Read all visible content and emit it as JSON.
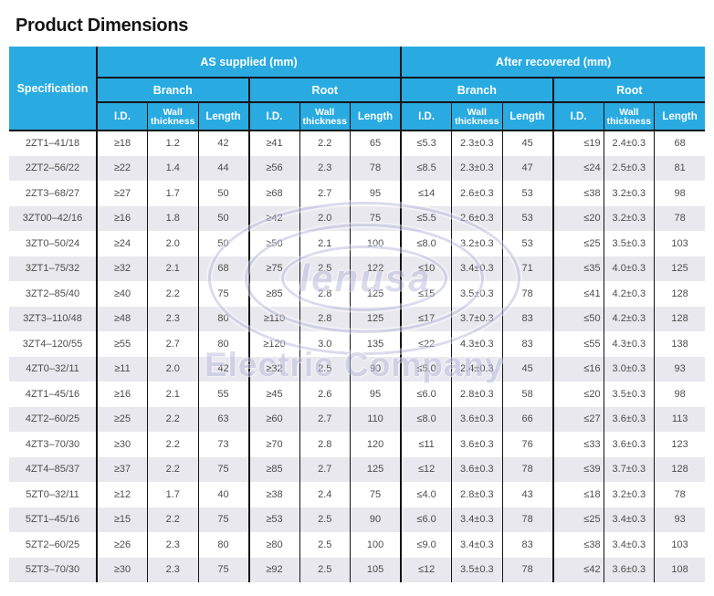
{
  "page_title": "Product Dimensions",
  "colors": {
    "header_blue": "#29abe2",
    "line": "#141414",
    "stripe": "#e8e8ee",
    "cell_text": "#4d4d4d",
    "watermark": "#b9b9de"
  },
  "watermark": {
    "name": "lenusa",
    "subtitle": "Electric Company"
  },
  "table": {
    "spec_header": "Specification",
    "groups": [
      {
        "label": "AS supplied (mm)",
        "sub": [
          "Branch",
          "Root"
        ]
      },
      {
        "label": "After recovered (mm)",
        "sub": [
          "Branch",
          "Root"
        ]
      }
    ],
    "sub_headers": [
      "I.D.",
      "Wall thickness",
      "Length"
    ],
    "rows": [
      {
        "spec": "2ZT1–41/18",
        "values": [
          "≥18",
          "1.2",
          "42",
          "≥41",
          "2.2",
          "65",
          "≤5.3",
          "2.3±0.3",
          "45",
          "≤19",
          "2.4±0.3",
          "68"
        ]
      },
      {
        "spec": "2ZT2–56/22",
        "values": [
          "≥22",
          "1.4",
          "44",
          "≥56",
          "2.3",
          "78",
          "≤8.5",
          "2.3±0.3",
          "47",
          "≤24",
          "2.5±0.3",
          "81"
        ]
      },
      {
        "spec": "2ZT3–68/27",
        "values": [
          "≥27",
          "1.7",
          "50",
          "≥68",
          "2.7",
          "95",
          "≤14",
          "2.6±0.3",
          "53",
          "≤38",
          "3.2±0.3",
          "98"
        ]
      },
      {
        "spec": "3ZT00–42/16",
        "values": [
          "≥16",
          "1.8",
          "50",
          "≥42",
          "2.0",
          "75",
          "≤5.5",
          "2.6±0.3",
          "53",
          "≤20",
          "3.2±0.3",
          "78"
        ]
      },
      {
        "spec": "3ZT0–50/24",
        "values": [
          "≥24",
          "2.0",
          "50",
          "≥50",
          "2.1",
          "100",
          "≤8.0",
          "3.2±0.3",
          "53",
          "≤25",
          "3.5±0.3",
          "103"
        ]
      },
      {
        "spec": "3ZT1–75/32",
        "values": [
          "≥32",
          "2.1",
          "68",
          "≥75",
          "2.5",
          "122",
          "≤10",
          "3.4±0.3",
          "71",
          "≤35",
          "4.0±0.3",
          "125"
        ]
      },
      {
        "spec": "3ZT2–85/40",
        "values": [
          "≥40",
          "2.2",
          "75",
          "≥85",
          "2.8",
          "125",
          "≤15",
          "3.5±0.3",
          "78",
          "≤41",
          "4.2±0.3",
          "128"
        ]
      },
      {
        "spec": "3ZT3–110/48",
        "values": [
          "≥48",
          "2.3",
          "80",
          "≥110",
          "2.8",
          "125",
          "≤17",
          "3.7±0.3",
          "83",
          "≤50",
          "4.2±0.3",
          "128"
        ]
      },
      {
        "spec": "3ZT4–120/55",
        "values": [
          "≥55",
          "2.7",
          "80",
          "≥120",
          "3.0",
          "135",
          "≤22",
          "4.3±0.3",
          "83",
          "≤55",
          "4.3±0.3",
          "138"
        ]
      },
      {
        "spec": "4ZT0–32/11",
        "values": [
          "≥11",
          "2.0",
          "42",
          "≥32",
          "2.5",
          "90",
          "≤5.0",
          "2.4±0.3",
          "45",
          "≤16",
          "3.0±0.3",
          "93"
        ]
      },
      {
        "spec": "4ZT1–45/16",
        "values": [
          "≥16",
          "2.1",
          "55",
          "≥45",
          "2.6",
          "95",
          "≤6.0",
          "2.8±0.3",
          "58",
          "≤20",
          "3.5±0.3",
          "98"
        ]
      },
      {
        "spec": "4ZT2–60/25",
        "values": [
          "≥25",
          "2.2",
          "63",
          "≥60",
          "2.7",
          "110",
          "≤8.0",
          "3.6±0.3",
          "66",
          "≤27",
          "3.6±0.3",
          "113"
        ]
      },
      {
        "spec": "4ZT3–70/30",
        "values": [
          "≥30",
          "2.2",
          "73",
          "≥70",
          "2.8",
          "120",
          "≤11",
          "3.6±0.3",
          "76",
          "≤33",
          "3.6±0.3",
          "123"
        ]
      },
      {
        "spec": "4ZT4–85/37",
        "values": [
          "≥37",
          "2.2",
          "75",
          "≥85",
          "2.7",
          "125",
          "≤12",
          "3.6±0.3",
          "78",
          "≤39",
          "3.7±0.3",
          "128"
        ]
      },
      {
        "spec": "5ZT0–32/11",
        "values": [
          "≥12",
          "1.7",
          "40",
          "≥38",
          "2.4",
          "75",
          "≤4.0",
          "2.8±0.3",
          "43",
          "≤18",
          "3.2±0.3",
          "78"
        ]
      },
      {
        "spec": "5ZT1–45/16",
        "values": [
          "≥15",
          "2.2",
          "75",
          "≥53",
          "2.5",
          "90",
          "≤6.0",
          "3.4±0.3",
          "78",
          "≤25",
          "3.4±0.3",
          "93"
        ]
      },
      {
        "spec": "5ZT2–60/25",
        "values": [
          "≥26",
          "2.3",
          "80",
          "≥80",
          "2.5",
          "100",
          "≤9.0",
          "3.4±0.3",
          "83",
          "≤38",
          "3.4±0.3",
          "103"
        ]
      },
      {
        "spec": "5ZT3–70/30",
        "values": [
          "≥30",
          "2.3",
          "75",
          "≥92",
          "2.5",
          "105",
          "≤12",
          "3.5±0.3",
          "78",
          "≤42",
          "3.6±0.3",
          "108"
        ]
      }
    ]
  }
}
